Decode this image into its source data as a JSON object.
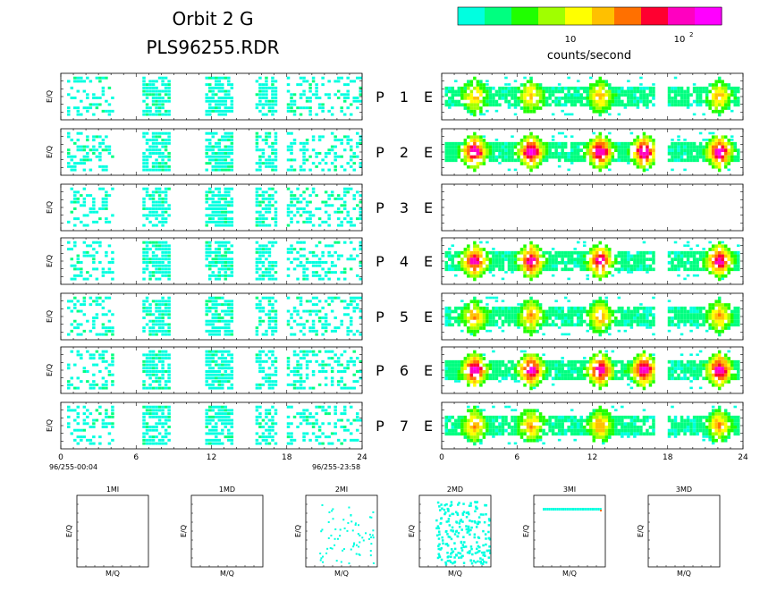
{
  "header": {
    "title": "Orbit 2 G",
    "subtitle": "PLS96255.RDR"
  },
  "colorbar": {
    "colors": [
      "#00ffe0",
      "#00ff80",
      "#20ff00",
      "#a0ff00",
      "#ffff00",
      "#ffc000",
      "#ff7000",
      "#ff0030",
      "#ff00c0",
      "#ff00ff"
    ],
    "tick_10": "10",
    "tick_100_base": "10",
    "tick_100_exp": "2",
    "label": "counts/second"
  },
  "panels": {
    "ylabel": "E/Q",
    "row_labels": [
      {
        "p": "P",
        "n": "1",
        "e": "E"
      },
      {
        "p": "P",
        "n": "2",
        "e": "E"
      },
      {
        "p": "P",
        "n": "3",
        "e": "E"
      },
      {
        "p": "P",
        "n": "4",
        "e": "E"
      },
      {
        "p": "P",
        "n": "5",
        "e": "E"
      },
      {
        "p": "P",
        "n": "6",
        "e": "E"
      },
      {
        "p": "P",
        "n": "7",
        "e": "E"
      }
    ],
    "xticks": [
      "0",
      "6",
      "12",
      "18",
      "24"
    ],
    "time_start": "96/255-00:04",
    "time_end": "96/255-23:58"
  },
  "small_panels": [
    {
      "title": "1MI",
      "ylabel": "E/Q",
      "xlabel": "M/Q"
    },
    {
      "title": "1MD",
      "ylabel": "E/Q",
      "xlabel": "M/Q"
    },
    {
      "title": "2MI",
      "ylabel": "E/Q",
      "xlabel": "M/Q"
    },
    {
      "title": "2MD",
      "ylabel": "E/Q",
      "xlabel": "M/Q"
    },
    {
      "title": "3MI",
      "ylabel": "E/Q",
      "xlabel": "M/Q"
    },
    {
      "title": "3MD",
      "ylabel": "E/Q",
      "xlabel": "M/Q"
    }
  ],
  "chart_data": {
    "type": "heatmap",
    "title": "Orbit 2 G",
    "subtitle": "PLS96255.RDR",
    "colorbar_label": "counts/second",
    "colorbar_scale": "log",
    "x_range_hours": [
      0,
      24
    ],
    "x_ticks": [
      0,
      6,
      12,
      18,
      24
    ],
    "ylabel": "E/Q",
    "p_channels": [
      {
        "row": 1,
        "activity_hours": [
          [
            0.5,
            4
          ],
          [
            6.5,
            8.5
          ],
          [
            11.5,
            13.5
          ],
          [
            15.5,
            17
          ],
          [
            18,
            24
          ]
        ],
        "peak": "low"
      },
      {
        "row": 2,
        "activity_hours": [
          [
            0.5,
            4
          ],
          [
            6.5,
            8.5
          ],
          [
            11.5,
            13.5
          ],
          [
            15.5,
            17
          ],
          [
            18,
            24
          ]
        ],
        "peak": "low"
      },
      {
        "row": 3,
        "activity_hours": [
          [
            0.5,
            4
          ],
          [
            6.5,
            8.5
          ],
          [
            11.5,
            13.5
          ],
          [
            15.5,
            17
          ],
          [
            18,
            24
          ]
        ],
        "peak": "low"
      },
      {
        "row": 4,
        "activity_hours": [
          [
            0.5,
            4
          ],
          [
            6.5,
            8.5
          ],
          [
            11.5,
            13.5
          ],
          [
            15.5,
            17
          ],
          [
            18,
            24
          ]
        ],
        "peak": "low"
      },
      {
        "row": 5,
        "activity_hours": [
          [
            0.5,
            4
          ],
          [
            6.5,
            8.5
          ],
          [
            11.5,
            13.5
          ],
          [
            15.5,
            17
          ],
          [
            18,
            24
          ]
        ],
        "peak": "low"
      },
      {
        "row": 6,
        "activity_hours": [
          [
            0.5,
            4
          ],
          [
            6.5,
            8.5
          ],
          [
            11.5,
            13.5
          ],
          [
            15.5,
            17
          ],
          [
            18,
            24
          ]
        ],
        "peak": "low"
      },
      {
        "row": 7,
        "activity_hours": [
          [
            0.5,
            4
          ],
          [
            6.5,
            8.5
          ],
          [
            11.5,
            13.5
          ],
          [
            15.5,
            17
          ],
          [
            18,
            24
          ]
        ],
        "peak": "low"
      }
    ],
    "e_channels": [
      {
        "row": 1,
        "bright_hours": [
          2.5,
          7,
          12.5,
          22
        ],
        "peak_level": 0.45
      },
      {
        "row": 2,
        "bright_hours": [
          2.5,
          7,
          12.5,
          16,
          22
        ],
        "peak_level": 0.85
      },
      {
        "row": 3,
        "bright_hours": [],
        "peak_level": 0
      },
      {
        "row": 4,
        "bright_hours": [
          2.5,
          7,
          12.5,
          22
        ],
        "peak_level": 0.8
      },
      {
        "row": 5,
        "bright_hours": [
          2.5,
          7,
          12.5,
          22
        ],
        "peak_level": 0.5
      },
      {
        "row": 6,
        "bright_hours": [
          2.5,
          7,
          12.5,
          16,
          22
        ],
        "peak_level": 0.85
      },
      {
        "row": 7,
        "bright_hours": [
          2.5,
          7,
          12.5,
          22
        ],
        "peak_level": 0.5
      }
    ],
    "mass_panels": [
      {
        "name": "1MI",
        "xlabel": "M/Q",
        "ylabel": "E/Q",
        "has_data": false
      },
      {
        "name": "1MD",
        "xlabel": "M/Q",
        "ylabel": "E/Q",
        "has_data": false
      },
      {
        "name": "2MI",
        "xlabel": "M/Q",
        "ylabel": "E/Q",
        "has_data": true
      },
      {
        "name": "2MD",
        "xlabel": "M/Q",
        "ylabel": "E/Q",
        "has_data": true
      },
      {
        "name": "3MI",
        "xlabel": "M/Q",
        "ylabel": "E/Q",
        "has_data": true
      },
      {
        "name": "3MD",
        "xlabel": "M/Q",
        "ylabel": "E/Q",
        "has_data": false
      }
    ]
  }
}
